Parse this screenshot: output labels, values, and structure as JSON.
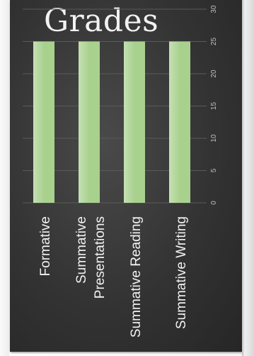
{
  "chart_data": {
    "type": "bar",
    "title": "Grades",
    "categories": [
      "Formative",
      "Summative Presentations",
      "Summative Reading",
      "Summative Writing"
    ],
    "category_lines": [
      [
        "Formative"
      ],
      [
        "Summative",
        "Presentations"
      ],
      [
        "Summative Reading"
      ],
      [
        "Summative Writing"
      ]
    ],
    "values": [
      25,
      25,
      25,
      25
    ],
    "ylim": [
      0,
      30
    ],
    "yticks": [
      "0",
      "5",
      "10",
      "15",
      "20",
      "25",
      "30"
    ],
    "grid": true,
    "legend": "none",
    "colors": {
      "bar": "#a9d18e",
      "bar_light": "#c5e0b4",
      "text": "#f2f2f2",
      "grid": "#5a5a5a",
      "tick": "#bfbfbf"
    }
  }
}
